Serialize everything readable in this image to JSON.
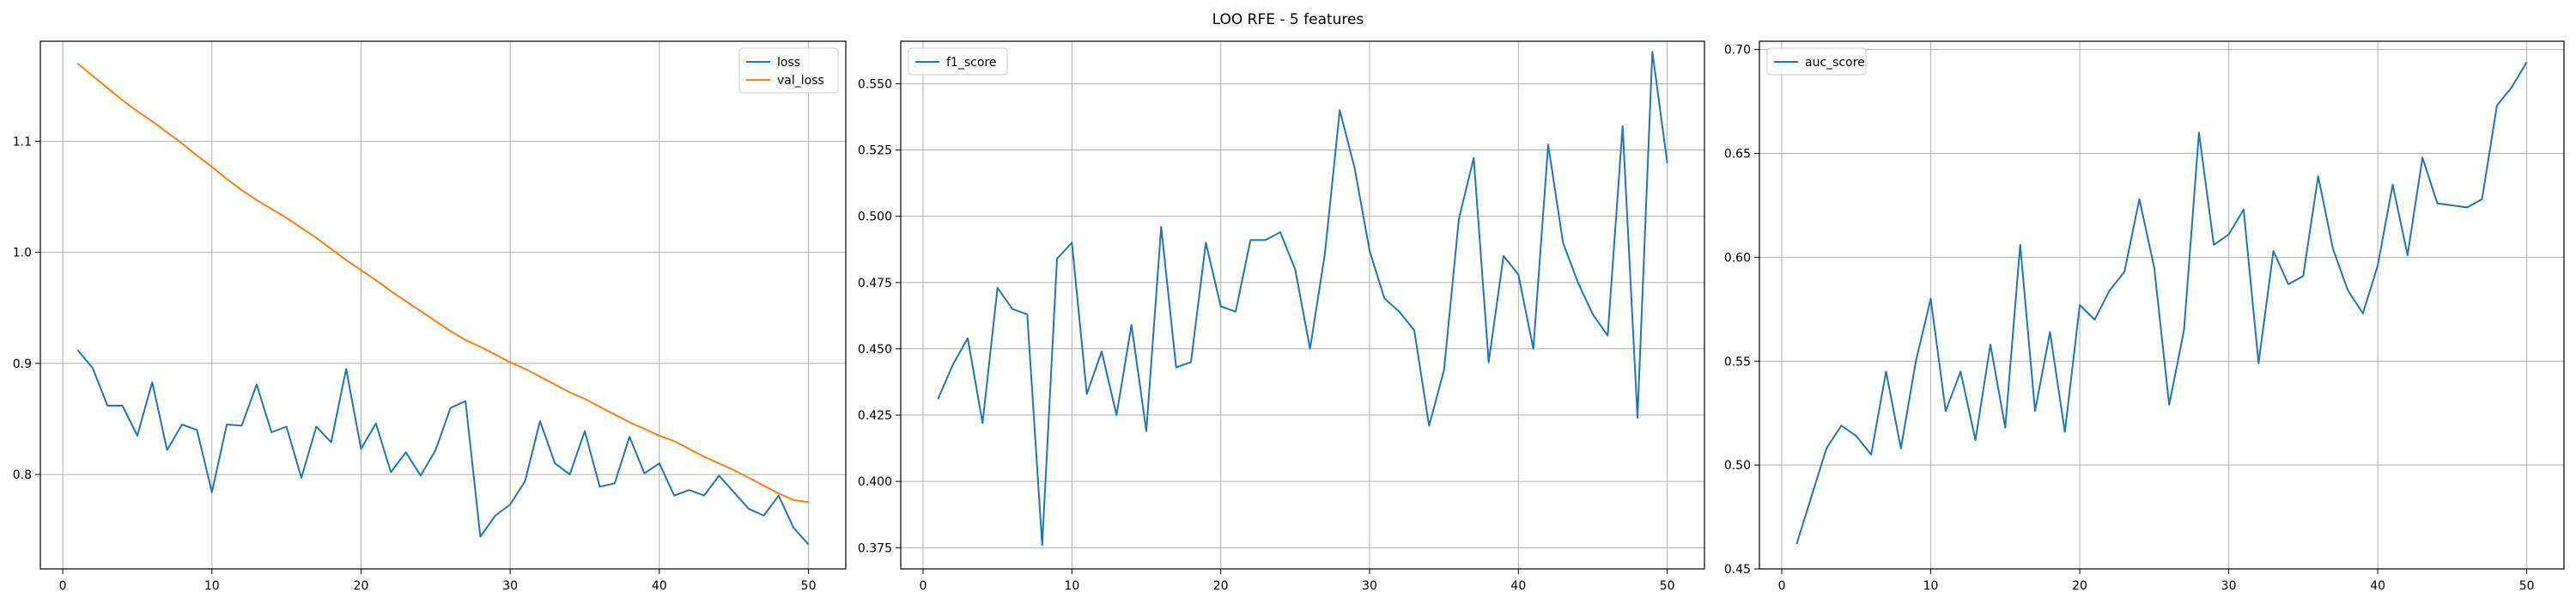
{
  "figure": {
    "title": "LOO RFE - 5 features"
  },
  "chart_data": [
    {
      "type": "line",
      "title": "",
      "xlabel": "",
      "ylabel": "",
      "xlim": [
        -1.5,
        52.5
      ],
      "ylim": [
        0.715,
        1.19
      ],
      "xticks": [
        0,
        10,
        20,
        30,
        40,
        50
      ],
      "yticks": [
        0.8,
        0.9,
        1.0,
        1.1
      ],
      "ytick_labels": [
        "0.8",
        "0.9",
        "1.0",
        "1.1"
      ],
      "grid": true,
      "legend": "top-right",
      "x": [
        1,
        2,
        3,
        4,
        5,
        6,
        7,
        8,
        9,
        10,
        11,
        12,
        13,
        14,
        15,
        16,
        17,
        18,
        19,
        20,
        21,
        22,
        23,
        24,
        25,
        26,
        27,
        28,
        29,
        30,
        31,
        32,
        33,
        34,
        35,
        36,
        37,
        38,
        39,
        40,
        41,
        42,
        43,
        44,
        45,
        46,
        47,
        48,
        49,
        50
      ],
      "series": [
        {
          "name": "loss",
          "color": "#1f77b4",
          "values": [
            0.912,
            0.896,
            0.862,
            0.862,
            0.835,
            0.883,
            0.822,
            0.845,
            0.84,
            0.784,
            0.845,
            0.844,
            0.881,
            0.838,
            0.843,
            0.797,
            0.843,
            0.829,
            0.895,
            0.823,
            0.846,
            0.802,
            0.82,
            0.799,
            0.822,
            0.86,
            0.866,
            0.744,
            0.763,
            0.773,
            0.794,
            0.848,
            0.81,
            0.8,
            0.839,
            0.789,
            0.792,
            0.834,
            0.801,
            0.81,
            0.781,
            0.786,
            0.781,
            0.799,
            0.784,
            0.769,
            0.763,
            0.781,
            0.752,
            0.737
          ]
        },
        {
          "name": "val_loss",
          "color": "#ff7f0e",
          "values": [
            1.17,
            1.159,
            1.148,
            1.137,
            1.127,
            1.118,
            1.108,
            1.098,
            1.087,
            1.077,
            1.066,
            1.056,
            1.047,
            1.039,
            1.031,
            1.022,
            1.013,
            1.003,
            0.993,
            0.984,
            0.975,
            0.965,
            0.956,
            0.947,
            0.938,
            0.929,
            0.921,
            0.915,
            0.908,
            0.901,
            0.895,
            0.888,
            0.881,
            0.874,
            0.868,
            0.861,
            0.854,
            0.847,
            0.841,
            0.835,
            0.83,
            0.823,
            0.816,
            0.81,
            0.804,
            0.797,
            0.79,
            0.783,
            0.777,
            0.775
          ]
        }
      ]
    },
    {
      "type": "line",
      "title": "",
      "xlabel": "",
      "ylabel": "",
      "xlim": [
        -1.5,
        52.5
      ],
      "ylim": [
        0.367,
        0.566
      ],
      "xticks": [
        0,
        10,
        20,
        30,
        40,
        50
      ],
      "yticks": [
        0.375,
        0.4,
        0.425,
        0.45,
        0.475,
        0.5,
        0.525,
        0.55
      ],
      "ytick_labels": [
        "0.375",
        "0.400",
        "0.425",
        "0.450",
        "0.475",
        "0.500",
        "0.525",
        "0.550"
      ],
      "grid": true,
      "legend": "top-left",
      "x": [
        1,
        2,
        3,
        4,
        5,
        6,
        7,
        8,
        9,
        10,
        11,
        12,
        13,
        14,
        15,
        16,
        17,
        18,
        19,
        20,
        21,
        22,
        23,
        24,
        25,
        26,
        27,
        28,
        29,
        30,
        31,
        32,
        33,
        34,
        35,
        36,
        37,
        38,
        39,
        40,
        41,
        42,
        43,
        44,
        45,
        46,
        47,
        48,
        49,
        50
      ],
      "series": [
        {
          "name": "f1_score",
          "color": "#1f77b4",
          "values": [
            0.431,
            0.444,
            0.454,
            0.422,
            0.473,
            0.465,
            0.463,
            0.376,
            0.484,
            0.49,
            0.433,
            0.449,
            0.425,
            0.459,
            0.419,
            0.496,
            0.443,
            0.445,
            0.49,
            0.466,
            0.464,
            0.491,
            0.491,
            0.494,
            0.48,
            0.45,
            0.486,
            0.54,
            0.518,
            0.487,
            0.469,
            0.464,
            0.457,
            0.421,
            0.442,
            0.499,
            0.522,
            0.445,
            0.485,
            0.478,
            0.45,
            0.527,
            0.49,
            0.475,
            0.463,
            0.455,
            0.534,
            0.424,
            0.562,
            0.52
          ]
        }
      ]
    },
    {
      "type": "line",
      "title": "",
      "xlabel": "",
      "ylabel": "",
      "xlim": [
        -1.5,
        52.5
      ],
      "ylim": [
        0.45,
        0.704
      ],
      "xticks": [
        0,
        10,
        20,
        30,
        40,
        50
      ],
      "yticks": [
        0.45,
        0.5,
        0.55,
        0.6,
        0.65,
        0.7
      ],
      "ytick_labels": [
        "0.45",
        "0.50",
        "0.55",
        "0.60",
        "0.65",
        "0.70"
      ],
      "grid": true,
      "legend": "top-left",
      "x": [
        1,
        2,
        3,
        4,
        5,
        6,
        7,
        8,
        9,
        10,
        11,
        12,
        13,
        14,
        15,
        16,
        17,
        18,
        19,
        20,
        21,
        22,
        23,
        24,
        25,
        26,
        27,
        28,
        29,
        30,
        31,
        32,
        33,
        34,
        35,
        36,
        37,
        38,
        39,
        40,
        41,
        42,
        43,
        44,
        45,
        46,
        47,
        48,
        49,
        50
      ],
      "series": [
        {
          "name": "auc_score",
          "color": "#1f77b4",
          "values": [
            0.462,
            0.485,
            0.508,
            0.519,
            0.514,
            0.505,
            0.545,
            0.508,
            0.55,
            0.58,
            0.526,
            0.545,
            0.512,
            0.558,
            0.518,
            0.606,
            0.526,
            0.564,
            0.516,
            0.577,
            0.57,
            0.584,
            0.593,
            0.628,
            0.595,
            0.529,
            0.565,
            0.66,
            0.606,
            0.611,
            0.623,
            0.549,
            0.603,
            0.587,
            0.591,
            0.639,
            0.604,
            0.584,
            0.573,
            0.596,
            0.635,
            0.601,
            0.648,
            0.626,
            0.625,
            0.624,
            0.628,
            0.673,
            0.682,
            0.694
          ]
        }
      ]
    }
  ]
}
